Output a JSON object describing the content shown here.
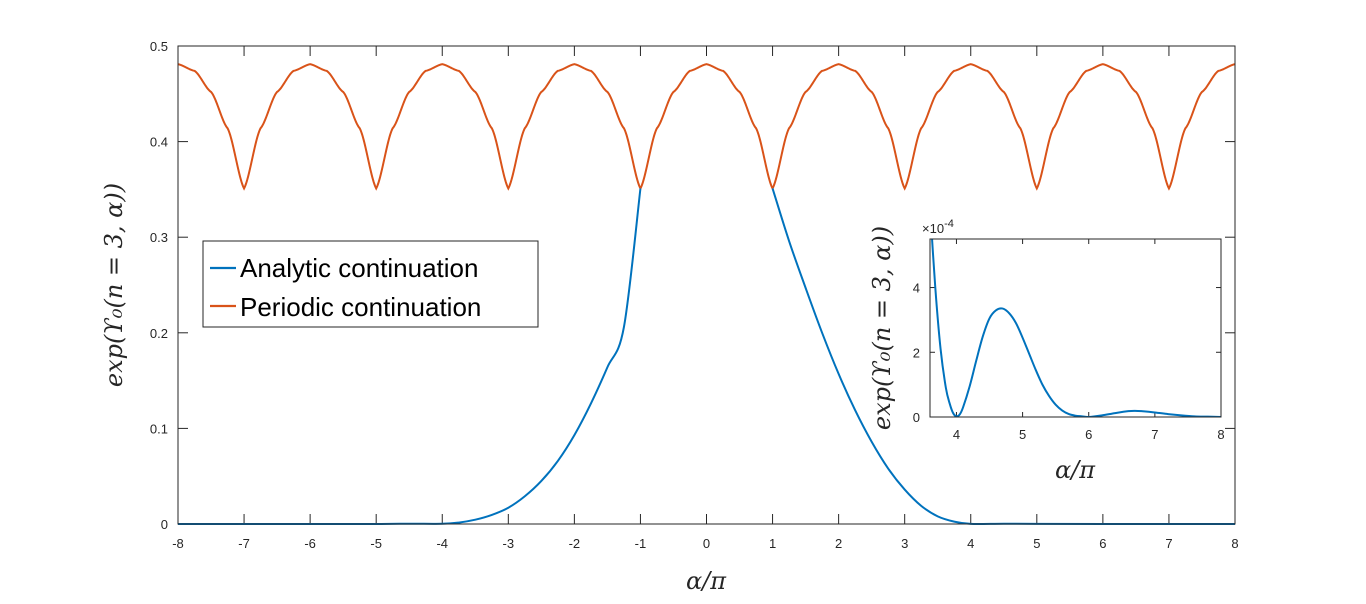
{
  "chart_data": [
    {
      "type": "line",
      "xlabel": "α/π",
      "ylabel": "exp(ϒ₀(n = 3, α))",
      "xlim": [
        -8,
        8
      ],
      "ylim": [
        0,
        0.5
      ],
      "xticks": [
        "-8",
        "-7",
        "-6",
        "-5",
        "-4",
        "-3",
        "-2",
        "-1",
        "0",
        "1",
        "2",
        "3",
        "4",
        "5",
        "6",
        "7",
        "8"
      ],
      "yticks": [
        "0",
        "0.1",
        "0.2",
        "0.3",
        "0.4",
        "0.5"
      ],
      "legend_position": "middle-left",
      "series": [
        {
          "name": "Analytic continuation",
          "color": "#0072BD",
          "x": [
            -8,
            -6,
            -5,
            -4.5,
            -4,
            -3.75,
            -3.5,
            -3.25,
            -3,
            -2.75,
            -2.5,
            -2.25,
            -2,
            -1.75,
            -1.5,
            -1.25,
            -1,
            1,
            1.25,
            1.5,
            1.75,
            2,
            2.25,
            2.5,
            2.75,
            3,
            3.25,
            3.5,
            3.75,
            4,
            4.5,
            5,
            6,
            8
          ],
          "y": [
            0,
            0,
            0,
            0.0003,
            0.0002,
            0.0015,
            0.0045,
            0.0095,
            0.017,
            0.029,
            0.045,
            0.066,
            0.093,
            0.126,
            0.164,
            0.206,
            0.351,
            0.351,
            0.296,
            0.247,
            0.2,
            0.157,
            0.119,
            0.086,
            0.058,
            0.036,
            0.019,
            0.008,
            0.0025,
            0.0001,
            0.0003,
            0.0001,
            0,
            0
          ]
        },
        {
          "name": "Periodic continuation",
          "color": "#D95319",
          "periodic": true,
          "period": 2,
          "cusp_at": [
            -7,
            -5,
            -3,
            -1,
            1,
            3,
            5,
            7
          ],
          "x": [
            0,
            0.25,
            0.5,
            0.75,
            1
          ],
          "y": [
            0.481,
            0.474,
            0.452,
            0.414,
            0.351
          ]
        }
      ]
    },
    {
      "type": "line",
      "xlabel": "α/π",
      "ylabel": "exp(ϒ₀(n = 3, α))",
      "exponent_label": "×10",
      "exponent_power": "-4",
      "xlim": [
        3.6,
        8
      ],
      "ylim": [
        0,
        5.5
      ],
      "y_multiplier": 0.0001,
      "xticks": [
        "4",
        "5",
        "6",
        "7",
        "8"
      ],
      "yticks": [
        "0",
        "2",
        "4"
      ],
      "series": [
        {
          "color": "#0072BD",
          "x": [
            3.6,
            3.68,
            3.76,
            3.84,
            3.9,
            3.95,
            4.0,
            4.05,
            4.1,
            4.2,
            4.3,
            4.4,
            4.5,
            4.6,
            4.7,
            4.8,
            4.9,
            5.0,
            5.1,
            5.2,
            5.3,
            5.4,
            5.5,
            5.6,
            5.7,
            5.8,
            5.9,
            6.0,
            6.2,
            6.4,
            6.6,
            6.7,
            6.8,
            7.0,
            7.2,
            7.4,
            7.6,
            7.8,
            8.0
          ],
          "y": [
            6.5,
            4.0,
            2.1,
            0.9,
            0.4,
            0.12,
            0.02,
            0.08,
            0.3,
            0.95,
            1.75,
            2.5,
            3.05,
            3.3,
            3.35,
            3.2,
            2.9,
            2.45,
            1.95,
            1.45,
            1.0,
            0.65,
            0.38,
            0.2,
            0.09,
            0.04,
            0.02,
            0.0,
            0.05,
            0.12,
            0.18,
            0.19,
            0.18,
            0.14,
            0.09,
            0.05,
            0.02,
            0.01,
            0.0
          ]
        }
      ]
    }
  ]
}
